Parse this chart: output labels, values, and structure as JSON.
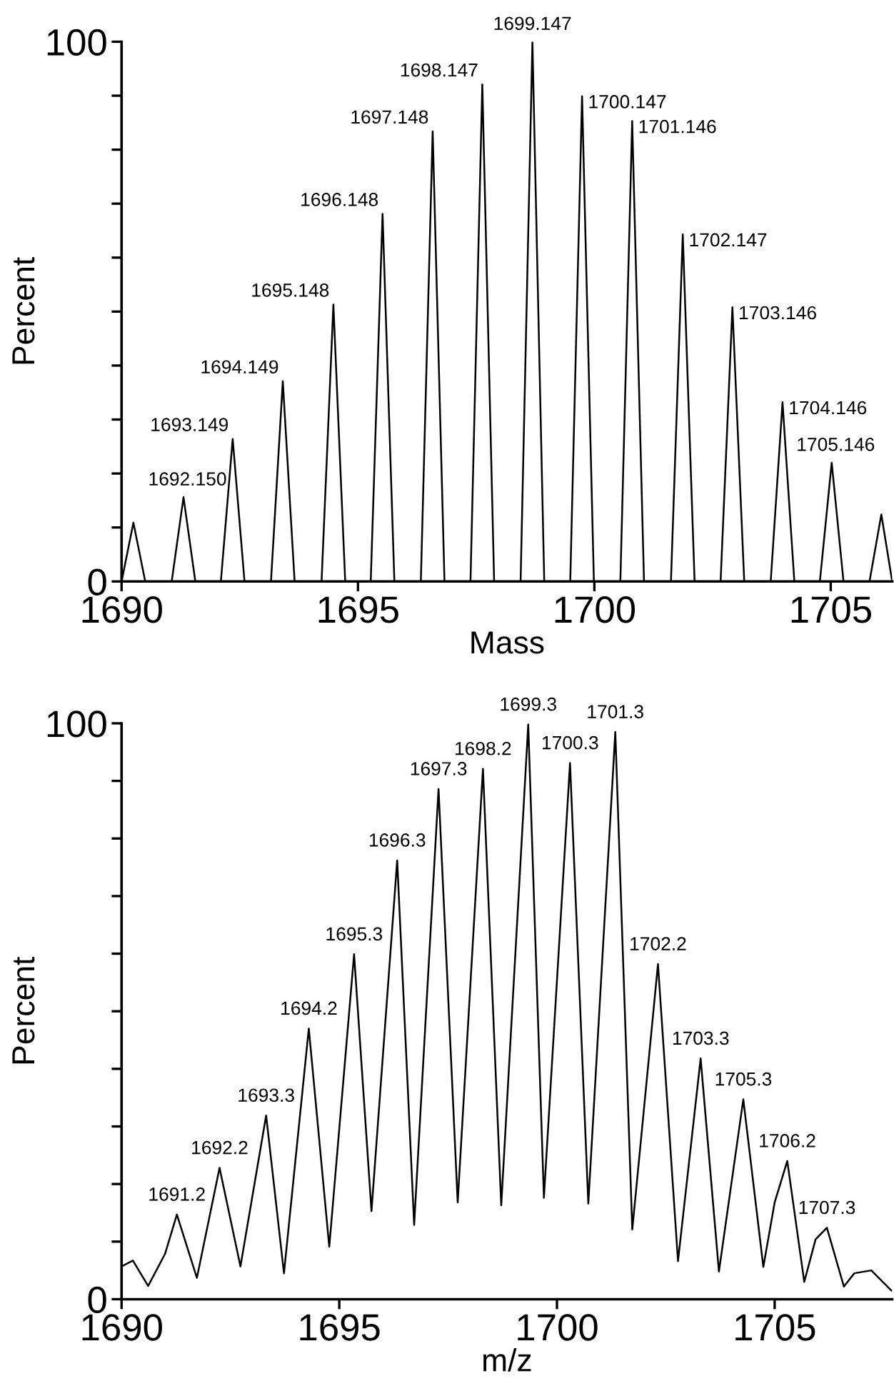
{
  "chart_data": [
    {
      "type": "line",
      "xlabel": "Mass",
      "ylabel": "Percent",
      "series": [
        {
          "color": "#000000",
          "x": [
            1690.0,
            1690.25,
            1690.5,
            1691.06,
            1691.31,
            1691.56,
            1692.1,
            1692.35,
            1692.6,
            1693.16,
            1693.41,
            1693.66,
            1694.23,
            1694.48,
            1694.73,
            1695.27,
            1695.52,
            1695.77,
            1696.33,
            1696.58,
            1696.83,
            1697.38,
            1697.63,
            1697.88,
            1698.44,
            1698.69,
            1698.94,
            1699.49,
            1699.74,
            1699.99,
            1700.55,
            1700.8,
            1701.05,
            1701.62,
            1701.87,
            1702.12,
            1702.67,
            1702.92,
            1703.17,
            1703.73,
            1703.98,
            1704.23,
            1704.77,
            1705.02,
            1705.27,
            1705.82,
            1706.07,
            1706.3
          ],
          "values": [
            0,
            10.9,
            0,
            0,
            15.6,
            0,
            0,
            26.4,
            0,
            0,
            37.1,
            0,
            0,
            51.3,
            0,
            0,
            68.1,
            0,
            0,
            83.4,
            0,
            0,
            92.1,
            0,
            0,
            100,
            0,
            0,
            89.9,
            0,
            0,
            85.3,
            0,
            0,
            64.3,
            0,
            0,
            50.8,
            0,
            0,
            33.2,
            0,
            0,
            22.0,
            0,
            0,
            12.4,
            0
          ]
        }
      ],
      "xlim": [
        1690,
        1706.3
      ],
      "ylim": [
        0,
        100
      ],
      "xticks": [
        1690,
        1695,
        1700,
        1705
      ],
      "yticks": [
        0,
        {
          "value": 10,
          "label": null
        },
        {
          "value": 20,
          "label": null
        },
        {
          "value": 30,
          "label": null
        },
        {
          "value": 40,
          "label": null
        },
        {
          "value": 50,
          "label": null
        },
        {
          "value": 60,
          "label": null
        },
        {
          "value": 70,
          "label": null
        },
        {
          "value": 80,
          "label": null
        },
        {
          "value": 90,
          "label": null
        },
        100
      ],
      "grid": false,
      "annotations": [
        {
          "text": "1692.150",
          "x": 1691.31,
          "y": 15.6
        },
        {
          "text": "1693.149",
          "x": 1692.35,
          "y": 26.4
        },
        {
          "text": "1694.149",
          "x": 1693.41,
          "y": 37.1
        },
        {
          "text": "1695.148",
          "x": 1694.48,
          "y": 51.3
        },
        {
          "text": "1696.148",
          "x": 1695.52,
          "y": 68.1
        },
        {
          "text": "1697.148",
          "x": 1696.58,
          "y": 83.4
        },
        {
          "text": "1698.147",
          "x": 1697.63,
          "y": 92.1
        },
        {
          "text": "1699.147",
          "x": 1698.69,
          "y": 100
        },
        {
          "text": "1700.147",
          "x": 1699.74,
          "y": 89.9
        },
        {
          "text": "1701.146",
          "x": 1700.8,
          "y": 85.3
        },
        {
          "text": "1702.147",
          "x": 1701.87,
          "y": 64.3
        },
        {
          "text": "1703.146",
          "x": 1702.92,
          "y": 50.8
        },
        {
          "text": "1704.146",
          "x": 1703.98,
          "y": 33.2
        },
        {
          "text": "1705.146",
          "x": 1705.02,
          "y": 22.0
        }
      ]
    },
    {
      "type": "line",
      "xlabel": "m/z",
      "ylabel": "Percent",
      "series": [
        {
          "color": "#000000",
          "x": [
            1690.0,
            1690.26,
            1690.61,
            1691.0,
            1691.27,
            1691.73,
            1692.25,
            1692.73,
            1693.32,
            1693.73,
            1694.3,
            1694.77,
            1695.34,
            1695.74,
            1696.33,
            1696.72,
            1697.28,
            1697.72,
            1698.3,
            1698.72,
            1699.34,
            1699.7,
            1700.3,
            1700.72,
            1701.34,
            1701.73,
            1702.32,
            1702.78,
            1703.3,
            1703.72,
            1704.28,
            1704.74,
            1705.0,
            1705.29,
            1705.68,
            1705.94,
            1706.2,
            1706.59,
            1706.83,
            1707.22,
            1707.68
          ],
          "values": [
            5.7,
            6.7,
            2.3,
            7.9,
            14.7,
            3.7,
            22.8,
            5.7,
            31.9,
            4.5,
            47.0,
            9.1,
            59.9,
            15.3,
            76.2,
            12.9,
            88.6,
            16.8,
            92.1,
            16.3,
            99.8,
            17.6,
            93.1,
            16.6,
            98.5,
            12.1,
            58.2,
            6.6,
            41.8,
            4.8,
            34.7,
            5.6,
            16.8,
            24.0,
            3.0,
            10.4,
            12.4,
            2.2,
            4.5,
            5.0,
            1.5
          ]
        }
      ],
      "xlim": [
        1690,
        1707.7
      ],
      "ylim": [
        0,
        100
      ],
      "xticks": [
        1690,
        1695,
        1700,
        1705
      ],
      "yticks": [
        0,
        {
          "value": 10,
          "label": null
        },
        {
          "value": 20,
          "label": null
        },
        {
          "value": 30,
          "label": null
        },
        {
          "value": 40,
          "label": null
        },
        {
          "value": 50,
          "label": null
        },
        {
          "value": 60,
          "label": null
        },
        {
          "value": 70,
          "label": null
        },
        {
          "value": 80,
          "label": null
        },
        {
          "value": 90,
          "label": null
        },
        100
      ],
      "grid": false,
      "annotations": [
        {
          "text": "1691.2",
          "x": 1691.27,
          "y": 14.7
        },
        {
          "text": "1692.2",
          "x": 1692.25,
          "y": 22.8
        },
        {
          "text": "1693.3",
          "x": 1693.32,
          "y": 31.9
        },
        {
          "text": "1694.2",
          "x": 1694.3,
          "y": 47.0
        },
        {
          "text": "1695.3",
          "x": 1695.34,
          "y": 59.9
        },
        {
          "text": "1696.3",
          "x": 1696.33,
          "y": 76.2
        },
        {
          "text": "1697.3",
          "x": 1697.28,
          "y": 88.6
        },
        {
          "text": "1698.2",
          "x": 1698.3,
          "y": 92.1
        },
        {
          "text": "1699.3",
          "x": 1699.34,
          "y": 99.8
        },
        {
          "text": "1700.3",
          "x": 1700.3,
          "y": 93.1
        },
        {
          "text": "1701.3",
          "x": 1701.34,
          "y": 98.5
        },
        {
          "text": "1702.2",
          "x": 1702.32,
          "y": 58.2
        },
        {
          "text": "1703.3",
          "x": 1703.3,
          "y": 41.8
        },
        {
          "text": "1705.3",
          "x": 1704.28,
          "y": 34.7
        },
        {
          "text": "1706.2",
          "x": 1705.29,
          "y": 24.0
        },
        {
          "text": "1707.3",
          "x": 1706.2,
          "y": 12.4
        }
      ]
    }
  ]
}
